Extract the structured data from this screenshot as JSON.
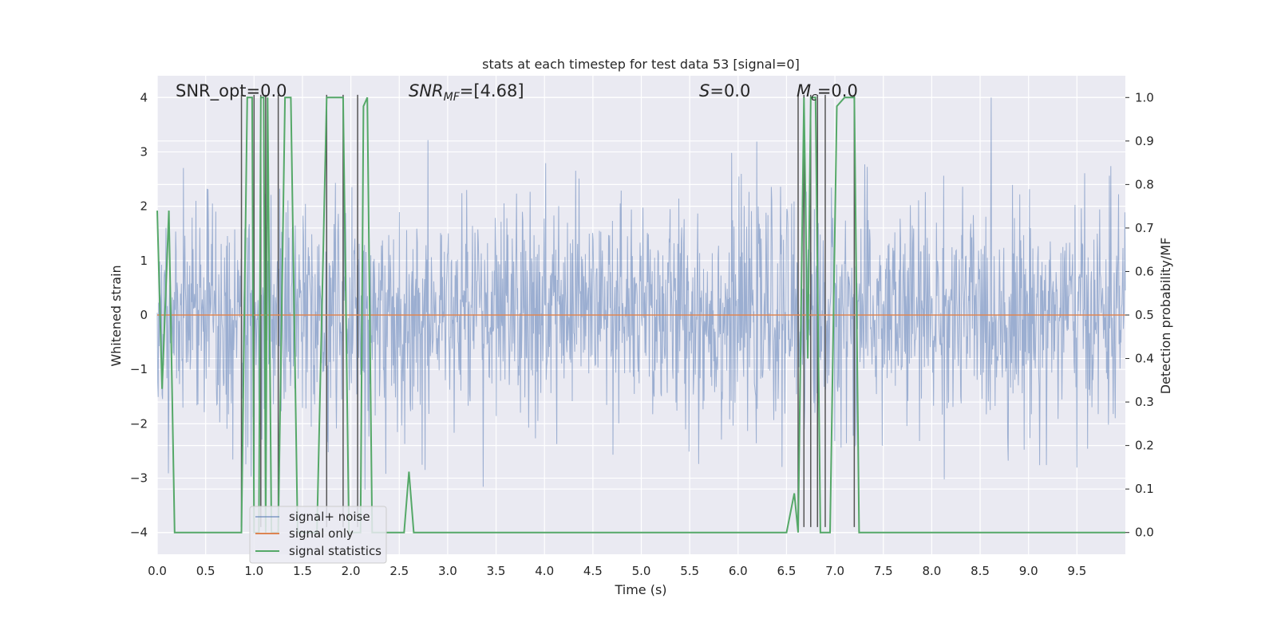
{
  "chart_data": {
    "type": "line",
    "title": "stats at each timestep for test data 53 [signal=0]",
    "xlabel": "Time (s)",
    "ylabel": "Whitened strain",
    "ylabel_right": "Detection probability/MF",
    "xlim": [
      0.0,
      10.0
    ],
    "ylim": [
      -4.4,
      4.4
    ],
    "ylim_right": [
      -0.05,
      1.05
    ],
    "grid": true,
    "legend_position": "lower-left",
    "xticks": [
      "0.0",
      "0.5",
      "1.0",
      "1.5",
      "2.0",
      "2.5",
      "3.0",
      "3.5",
      "4.0",
      "4.5",
      "5.0",
      "5.5",
      "6.0",
      "6.5",
      "7.0",
      "7.5",
      "8.0",
      "8.5",
      "9.0",
      "9.5"
    ],
    "yticks": [
      "4",
      "3",
      "2",
      "1",
      "0",
      "−1",
      "−2",
      "−3",
      "−4"
    ],
    "yticks_right": [
      "1.0",
      "0.9",
      "0.8",
      "0.7",
      "0.6",
      "0.5",
      "0.4",
      "0.3",
      "0.2",
      "0.1",
      "0.0"
    ],
    "annotations": [
      {
        "plain": "SNR_opt=0.0"
      },
      {
        "sym": "SNR",
        "sub": "MF",
        "rest": "=[4.68]"
      },
      {
        "sym": "S",
        "sub": "",
        "rest": "=0.0"
      },
      {
        "sym": "M",
        "sub": "c",
        "rest": "=0.0"
      }
    ],
    "series": [
      {
        "name": "signal+ noise",
        "axis": "left",
        "color": "#4c72b0",
        "alpha": 0.5,
        "noise_envelope": {
          "sigma": 1.0,
          "x_start": 0.0,
          "x_end": 10.0,
          "samples": 2000,
          "seed": 53
        }
      },
      {
        "name": "signal only",
        "axis": "left",
        "color": "#dd8452",
        "x": [
          0.0,
          10.0
        ],
        "y": [
          0.0,
          0.0
        ]
      },
      {
        "name": "signal statistics",
        "axis": "right",
        "color": "#55a868",
        "x": [
          0.0,
          0.05,
          0.12,
          0.18,
          0.23,
          0.5,
          0.8,
          0.87,
          0.93,
          0.98,
          1.0,
          1.05,
          1.07,
          1.1,
          1.12,
          1.14,
          1.18,
          1.25,
          1.32,
          1.38,
          1.45,
          1.5,
          1.65,
          1.75,
          1.8,
          1.92,
          1.98,
          2.05,
          2.1,
          2.13,
          2.17,
          2.22,
          2.28,
          2.5,
          2.55,
          2.6,
          2.65,
          3.0,
          4.0,
          5.0,
          6.0,
          6.5,
          6.58,
          6.62,
          6.68,
          6.72,
          6.75,
          6.8,
          6.85,
          6.9,
          6.95,
          7.02,
          7.1,
          7.2,
          7.25,
          8.0,
          9.0,
          10.0
        ],
        "y": [
          0.74,
          0.33,
          0.74,
          0.0,
          0.0,
          0.0,
          0.0,
          0.0,
          1.0,
          1.0,
          0.0,
          0.0,
          1.0,
          1.0,
          0.0,
          1.0,
          0.0,
          0.0,
          1.0,
          1.0,
          0.0,
          0.0,
          0.0,
          1.0,
          1.0,
          1.0,
          0.0,
          0.0,
          0.0,
          0.98,
          1.0,
          0.0,
          0.0,
          0.0,
          0.0,
          0.14,
          0.0,
          0.0,
          0.0,
          0.0,
          0.0,
          0.0,
          0.09,
          0.0,
          1.0,
          0.4,
          1.0,
          1.0,
          0.0,
          0.0,
          0.0,
          0.98,
          1.0,
          1.0,
          0.0,
          0.0,
          0.0,
          0.0
        ]
      },
      {
        "name": "",
        "axis": "left",
        "color": "#555555",
        "kind": "vlines",
        "x": [
          0.87,
          1.0,
          1.07,
          1.12,
          1.25,
          1.75,
          1.92,
          2.07,
          6.62,
          6.68,
          6.75,
          6.82,
          6.9,
          7.2
        ],
        "y_top": 4.05,
        "y_bottom": -3.9
      }
    ]
  }
}
